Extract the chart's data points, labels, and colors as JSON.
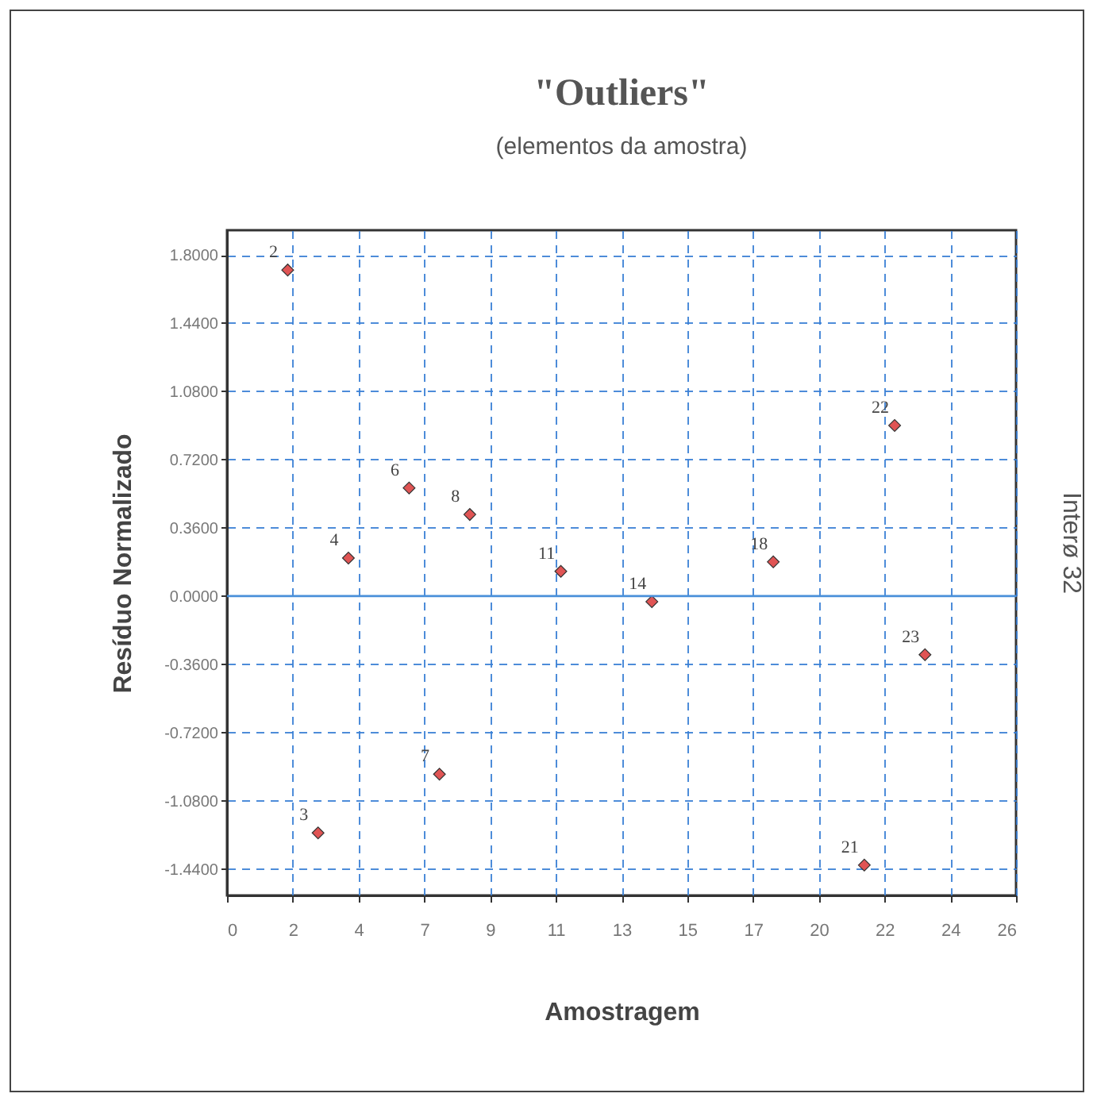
{
  "chart_data": {
    "type": "scatter",
    "title": "\"Outliers\"",
    "subtitle": "(elementos da amostra)",
    "xlabel": "Amostragem",
    "ylabel": "Resíduo Normalizado",
    "annotations": [
      "Interø 32",
      {
        "text": "2",
        "x": 2,
        "y": 1.72
      },
      {
        "text": "3",
        "x": 3,
        "y": -1.25
      },
      {
        "text": "4",
        "x": 4,
        "y": 0.2
      },
      {
        "text": "6",
        "x": 6,
        "y": 0.57
      },
      {
        "text": "7",
        "x": 7,
        "y": -0.94
      },
      {
        "text": "8",
        "x": 8,
        "y": 0.43
      },
      {
        "text": "11",
        "x": 11,
        "y": 0.13
      },
      {
        "text": "14",
        "x": 14,
        "y": -0.03
      },
      {
        "text": "18",
        "x": 18,
        "y": 0.18
      },
      {
        "text": "21",
        "x": 21,
        "y": -1.42
      },
      {
        "text": "22",
        "x": 22,
        "y": 0.9
      },
      {
        "text": "23",
        "x": 23,
        "y": -0.31
      }
    ],
    "x": [
      2,
      3,
      4,
      6,
      7,
      8,
      11,
      14,
      18,
      21,
      22,
      23
    ],
    "series": [
      {
        "color": "#e05454",
        "values": [
          1.72,
          -1.25,
          0.2,
          0.57,
          -0.94,
          0.43,
          0.13,
          -0.03,
          0.18,
          -1.42,
          0.9,
          -0.31
        ]
      }
    ],
    "xlim": [
      0,
      26
    ],
    "xticks": [
      0,
      {
        "value": 2.1667,
        "label": "2"
      },
      {
        "value": 4.3333,
        "label": "4"
      },
      {
        "value": 6.5,
        "label": "7"
      },
      {
        "value": 8.6667,
        "label": "9"
      },
      {
        "value": 10.8333,
        "label": "11"
      },
      13,
      {
        "value": 15.1667,
        "label": "15"
      },
      {
        "value": 17.3333,
        "label": "17"
      },
      {
        "value": 19.5,
        "label": "20"
      },
      {
        "value": 21.6667,
        "label": "22"
      },
      {
        "value": 23.8333,
        "label": "24"
      },
      26
    ],
    "ylim": [
      -1.58,
      1.93
    ],
    "yticks": [
      {
        "value": -1.44,
        "label": "-1.4400"
      },
      {
        "value": -1.08,
        "label": "-1.0800"
      },
      {
        "value": -0.72,
        "label": "-0.7200"
      },
      {
        "value": -0.36,
        "label": "-0.3600"
      },
      {
        "value": 0,
        "label": "0.0000"
      },
      {
        "value": 0.36,
        "label": "0.3600"
      },
      {
        "value": 0.72,
        "label": "0.7200"
      },
      {
        "value": 1.08,
        "label": "1.0800"
      },
      {
        "value": 1.44,
        "label": "1.4400"
      },
      {
        "value": 1.8,
        "label": "1.8000"
      }
    ],
    "grid": true,
    "marker": "diamond",
    "ref_lines": [
      {
        "axis": "y",
        "value": 0,
        "color": "#4a90d9",
        "line_style": "solid"
      }
    ]
  }
}
